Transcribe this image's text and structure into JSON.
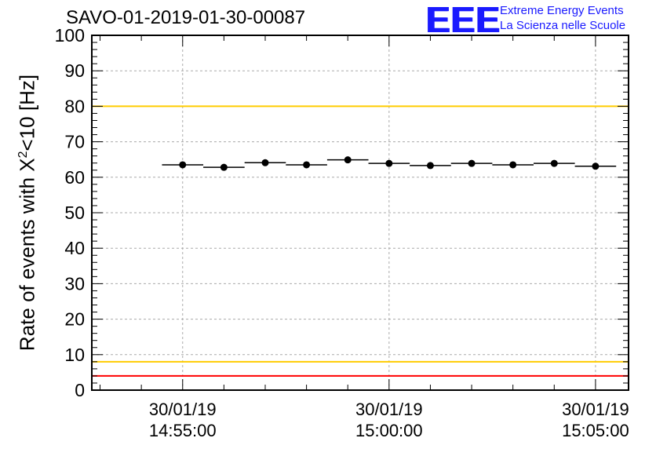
{
  "title": "SAVO-01-2019-01-30-00087",
  "logo": {
    "mark": "EEE",
    "line1": "Extreme Energy Events",
    "line2": "La Scienza nelle Scuole",
    "color": "#1a1aff"
  },
  "chart_data": {
    "type": "scatter",
    "title": "SAVO-01-2019-01-30-00087",
    "ylabel_prefix": "Rate of events with X",
    "ylabel_sup": "2",
    "ylabel_suffix": "<10 [Hz]",
    "xlabel": "",
    "ylim": [
      0,
      100
    ],
    "yticks": [
      0,
      10,
      20,
      30,
      40,
      50,
      60,
      70,
      80,
      90,
      100
    ],
    "xlim_minutes": [
      -2.2,
      10.8
    ],
    "xticks": [
      {
        "minute": 0,
        "date": "30/01/19",
        "time": "14:55:00"
      },
      {
        "minute": 5,
        "date": "30/01/19",
        "time": "15:00:00"
      },
      {
        "minute": 10,
        "date": "30/01/19",
        "time": "15:05:00"
      }
    ],
    "grid": true,
    "reference_lines": [
      {
        "y": 100,
        "color": "#ff0000"
      },
      {
        "y": 80,
        "color": "#ffcc00"
      },
      {
        "y": 8,
        "color": "#ffcc00"
      },
      {
        "y": 4,
        "color": "#ff0000"
      }
    ],
    "bin_width_minutes": 1,
    "series": [
      {
        "name": "rate",
        "x_minutes": [
          0,
          1,
          2,
          3,
          4,
          5,
          6,
          7,
          8,
          9,
          10
        ],
        "values": [
          63.5,
          62.8,
          64.1,
          63.5,
          64.9,
          63.9,
          63.3,
          63.9,
          63.5,
          63.9,
          63.1
        ]
      }
    ]
  }
}
